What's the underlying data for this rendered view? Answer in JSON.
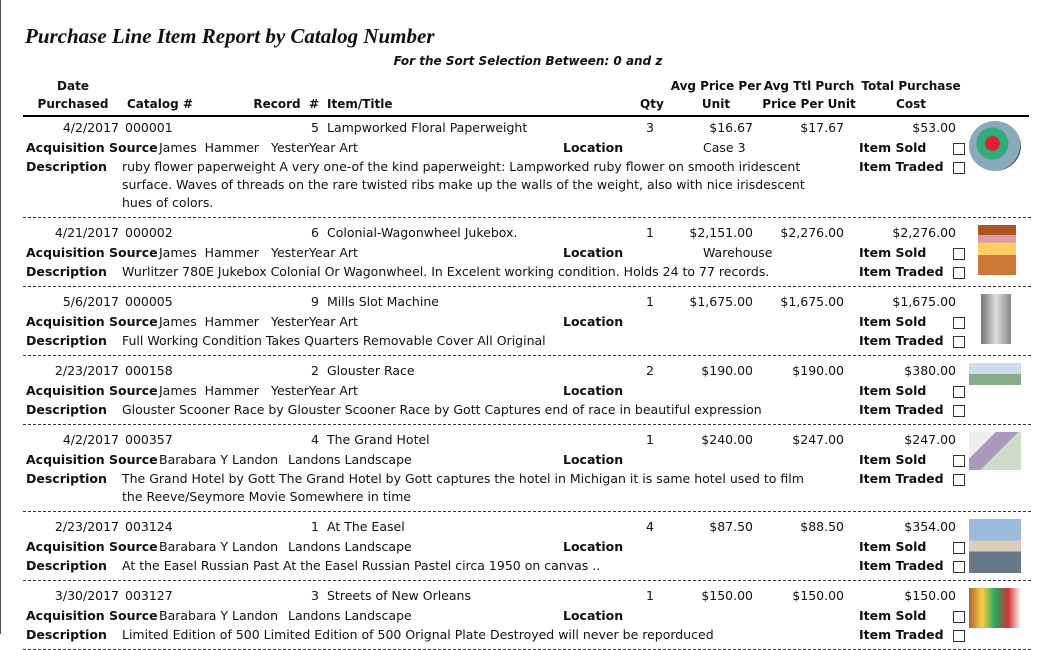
{
  "report": {
    "title": "Purchase Line Item Report by Catalog Number",
    "subtitle": "For the Sort Selection Between: 0 and z",
    "columns": {
      "date": "Date Purchased",
      "catalog": "Catalog #",
      "record": "Record  #",
      "title": "Item/Title",
      "qty": "Qty",
      "avg_price": "Avg Price Per Unit",
      "avg_total_price": "Avg Ttl Purch Price Per Unit",
      "total_cost": "Total Purchase Cost"
    },
    "labels": {
      "source": "Acquisition Source",
      "location": "Location",
      "description": "Description",
      "sold": "Item Sold",
      "traded": "Item Traded"
    },
    "items": [
      {
        "date": "4/2/2017",
        "catalog": "000001",
        "record": 5,
        "title": "Lampworked Floral Paperweight",
        "qty": 3,
        "avg_price": "$16.67",
        "avg_total_price": "$17.67",
        "total_cost": "$53.00",
        "source_name": "James  Hammer",
        "source_company": "YesterYear Art",
        "location": "Case 3",
        "description": "ruby flower paperweight A very one-of the kind paperweight: Lampworked ruby flower on smooth iridescent surface. Waves of threads on the rare twisted ribs make up the walls of the weight, also with nice irisdescent hues of colors."
      },
      {
        "date": "4/21/2017",
        "catalog": "000002",
        "record": 6,
        "title": "Colonial-Wagonwheel Jukebox.",
        "qty": 1,
        "avg_price": "$2,151.00",
        "avg_total_price": "$2,276.00",
        "total_cost": "$2,276.00",
        "source_name": "James  Hammer",
        "source_company": "YesterYear Art",
        "location": "Warehouse",
        "description": "Wurlitzer 780E Jukebox Colonial Or Wagonwheel. In Excelent working condition. Holds 24 to 77 records."
      },
      {
        "date": "5/6/2017",
        "catalog": "000005",
        "record": 9,
        "title": "Mills Slot Machine",
        "qty": 1,
        "avg_price": "$1,675.00",
        "avg_total_price": "$1,675.00",
        "total_cost": "$1,675.00",
        "source_name": "James  Hammer",
        "source_company": "YesterYear Art",
        "description": "Full Working Condition Takes Quarters Removable Cover All Original"
      },
      {
        "date": "2/23/2017",
        "catalog": "000158",
        "record": 2,
        "title": "Glouster Race",
        "qty": 2,
        "avg_price": "$190.00",
        "avg_total_price": "$190.00",
        "total_cost": "$380.00",
        "source_name": "James  Hammer",
        "source_company": "YesterYear Art",
        "description": "Glouster Scooner Race by  Glouster Scooner Race by Gott Captures end of race in beautiful expression"
      },
      {
        "date": "4/2/2017",
        "catalog": "000357",
        "record": 4,
        "title": "The Grand Hotel",
        "qty": 1,
        "avg_price": "$240.00",
        "avg_total_price": "$247.00",
        "total_cost": "$247.00",
        "source_name": "Barabara Y Landon",
        "source_company": "Landons Landscape",
        "description": "The Grand Hotel by Gott The Grand Hotel by Gott captures the hotel in Michigan it is same hotel used to film the Reeve/Seymore Movie Somewhere in time"
      },
      {
        "date": "2/23/2017",
        "catalog": "003124",
        "record": 1,
        "title": "At The Easel",
        "qty": 4,
        "avg_price": "$87.50",
        "avg_total_price": "$88.50",
        "total_cost": "$354.00",
        "source_name": "Barabara Y Landon",
        "source_company": "Landons Landscape",
        "description": "At the Easel Russian Past At the Easel Russian Pastel circa 1950 on canvas .."
      },
      {
        "date": "3/30/2017",
        "catalog": "003127",
        "record": 3,
        "title": "Streets of New Orleans",
        "qty": 1,
        "avg_price": "$150.00",
        "avg_total_price": "$150.00",
        "total_cost": "$150.00",
        "source_name": "Barabara Y Landon",
        "source_company": "Landons Landscape",
        "description": "Limited Edition of 500 Limited Edition of 500 Orignal Plate Destroyed will never be reporduced"
      }
    ]
  }
}
